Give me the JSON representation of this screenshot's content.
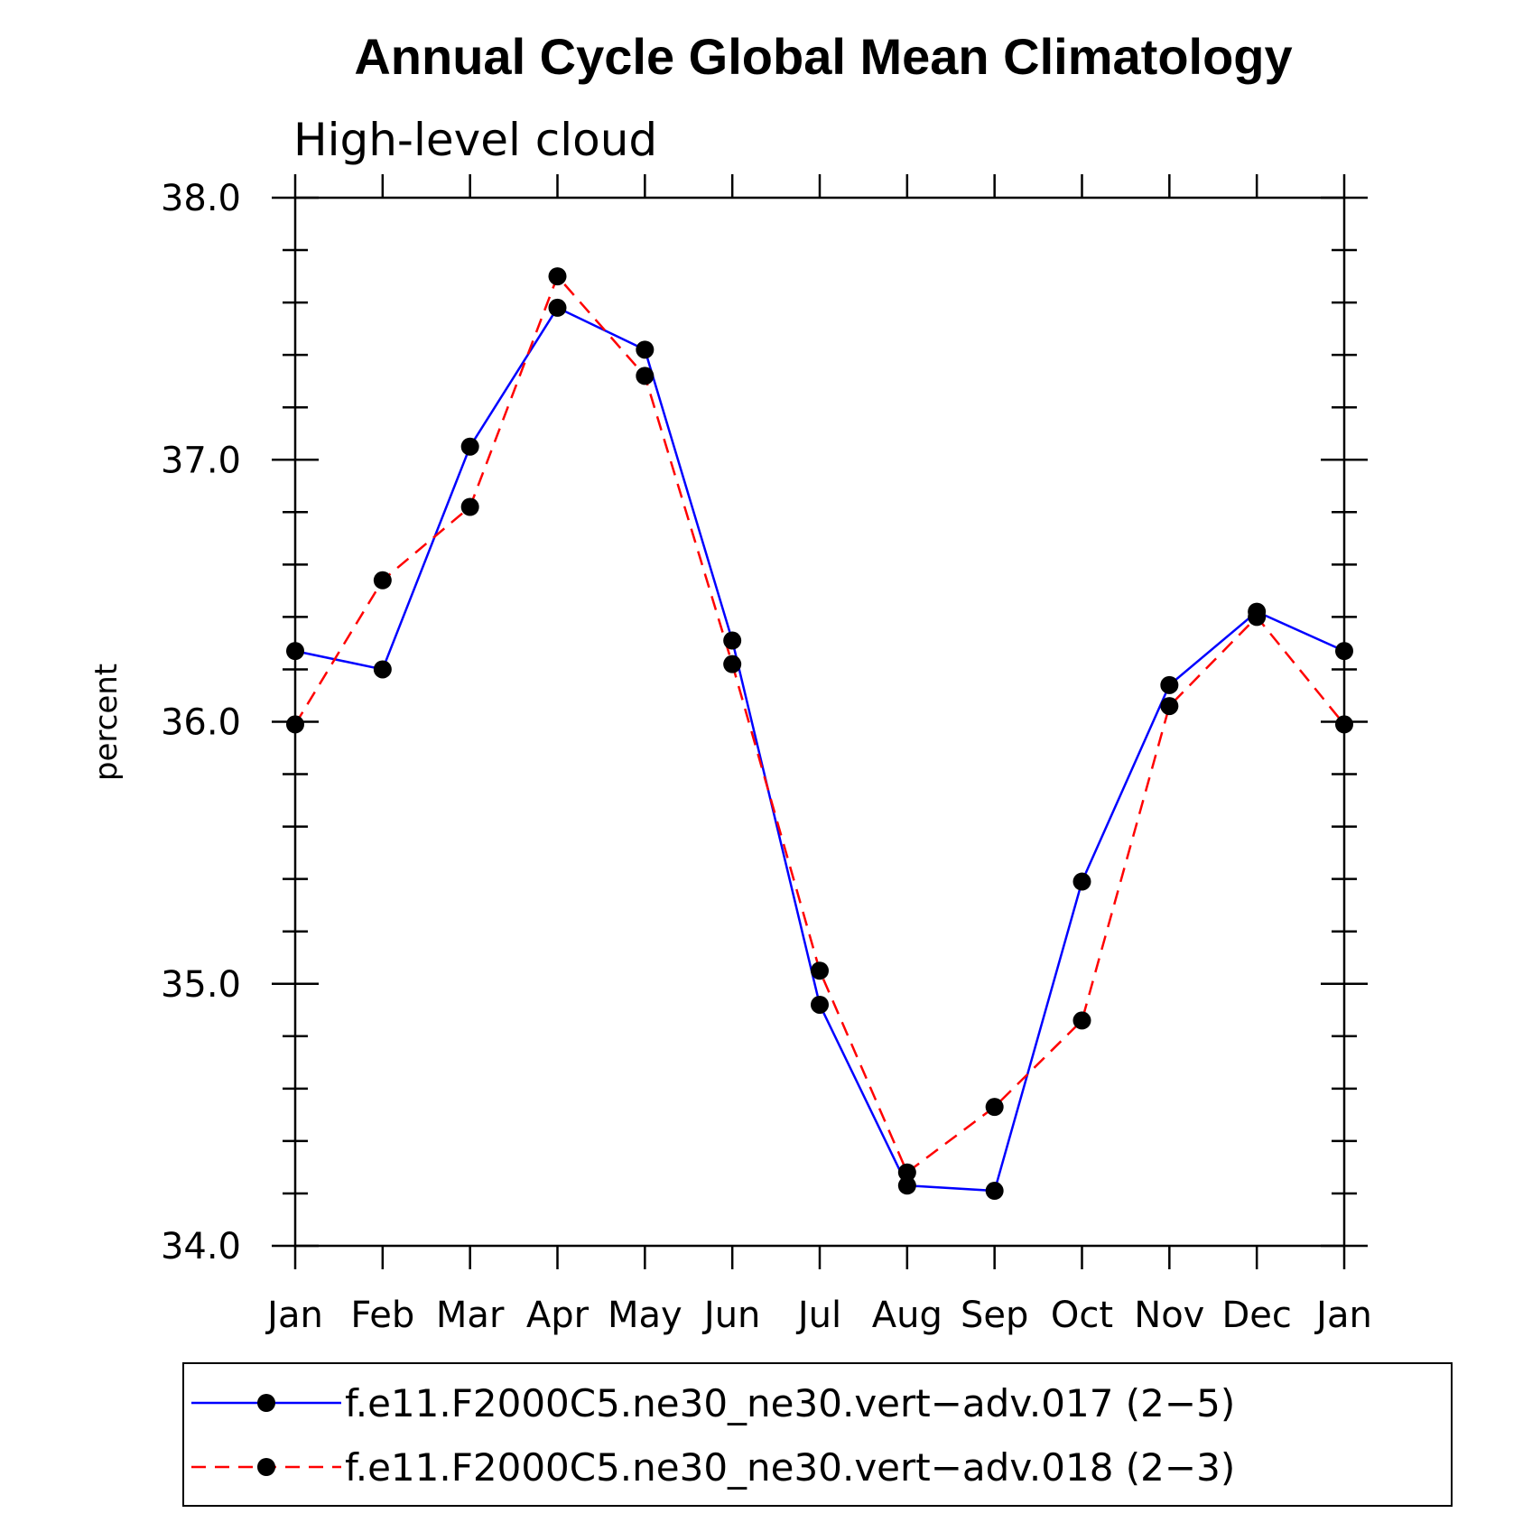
{
  "chart_data": {
    "type": "line",
    "title": "Annual Cycle Global Mean Climatology",
    "subtitle": "High-level cloud",
    "xlabel": "",
    "ylabel": "percent",
    "categories": [
      "Jan",
      "Feb",
      "Mar",
      "Apr",
      "May",
      "Jun",
      "Jul",
      "Aug",
      "Sep",
      "Oct",
      "Nov",
      "Dec",
      "Jan"
    ],
    "ylim": [
      34.0,
      38.0
    ],
    "yticks": [
      "34.0",
      "35.0",
      "36.0",
      "37.0",
      "38.0"
    ],
    "grid": false,
    "legend_position": "bottom",
    "series": [
      {
        "name": "f.e11.F2000C5.ne30_ne30.vert−adv.017 (2−5)",
        "color": "#0000ff",
        "dash": "solid",
        "marker": "filled-circle",
        "values": [
          36.27,
          36.2,
          37.05,
          37.58,
          37.42,
          36.31,
          34.92,
          34.23,
          34.21,
          35.39,
          36.14,
          36.42,
          36.27
        ]
      },
      {
        "name": "f.e11.F2000C5.ne30_ne30.vert−adv.018 (2−3)",
        "color": "#ff0000",
        "dash": "dashed",
        "marker": "filled-circle",
        "values": [
          35.99,
          36.54,
          36.82,
          37.7,
          37.32,
          36.22,
          35.05,
          34.28,
          34.53,
          34.86,
          36.06,
          36.4,
          35.99
        ]
      }
    ]
  }
}
